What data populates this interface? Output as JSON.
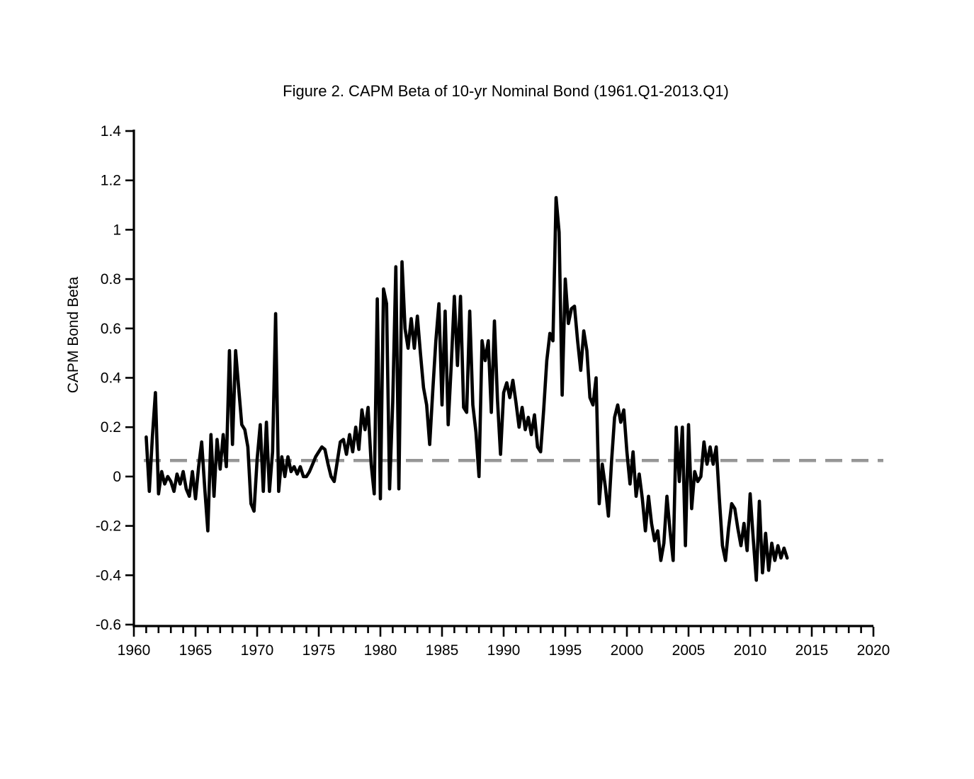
{
  "chart_data": {
    "type": "line",
    "title": "Figure 2. CAPM Beta of 10-yr Nominal Bond (1961.Q1-2013.Q1)",
    "ylabel": "CAPM Bond Beta",
    "xlabel": "",
    "xlim": [
      1960,
      2020
    ],
    "ylim": [
      -0.6,
      1.4
    ],
    "grid": false,
    "legend": "none",
    "line_color": "#000000",
    "x_minor_tick_step": 1,
    "x_major_ticks": [
      {
        "value": 1960,
        "label": "1960"
      },
      {
        "value": 1965,
        "label": "1965"
      },
      {
        "value": 1970,
        "label": "1970"
      },
      {
        "value": 1975,
        "label": "1975"
      },
      {
        "value": 1980,
        "label": "1980"
      },
      {
        "value": 1985,
        "label": "1985"
      },
      {
        "value": 1990,
        "label": "1990"
      },
      {
        "value": 1995,
        "label": "1995"
      },
      {
        "value": 2000,
        "label": "2000"
      },
      {
        "value": 2005,
        "label": "2005"
      },
      {
        "value": 2010,
        "label": "2010"
      },
      {
        "value": 2015,
        "label": "2015"
      },
      {
        "value": 2020,
        "label": "2020"
      }
    ],
    "y_ticks": [
      {
        "value": 1.4,
        "label": "1.4"
      },
      {
        "value": 1.2,
        "label": "1.2"
      },
      {
        "value": 1.0,
        "label": "1"
      },
      {
        "value": 0.8,
        "label": "0.8"
      },
      {
        "value": 0.6,
        "label": "0.6"
      },
      {
        "value": 0.4,
        "label": "0.4"
      },
      {
        "value": 0.2,
        "label": "0.2"
      },
      {
        "value": 0.0,
        "label": "0"
      },
      {
        "value": -0.2,
        "label": "-0.2"
      },
      {
        "value": -0.4,
        "label": "-0.4"
      },
      {
        "value": -0.6,
        "label": "-0.6"
      }
    ],
    "reference_line": {
      "value": 0.065,
      "style": "dashed",
      "color": "#969696"
    },
    "series": [
      {
        "name": "CAPM bond beta (quarterly)",
        "color": "#000000",
        "x_start": 1961.0,
        "x_step": 0.25,
        "x_end": 2013.0,
        "values": [
          0.16,
          -0.06,
          0.16,
          0.34,
          -0.07,
          0.02,
          -0.03,
          0.0,
          -0.02,
          -0.06,
          0.01,
          -0.03,
          0.02,
          -0.05,
          -0.08,
          0.02,
          -0.09,
          0.04,
          0.14,
          -0.05,
          -0.22,
          0.17,
          -0.08,
          0.15,
          0.03,
          0.17,
          0.04,
          0.51,
          0.13,
          0.51,
          0.36,
          0.21,
          0.19,
          0.12,
          -0.11,
          -0.14,
          0.07,
          0.21,
          -0.06,
          0.22,
          -0.06,
          0.1,
          0.66,
          -0.06,
          0.08,
          0.0,
          0.08,
          0.02,
          0.04,
          0.01,
          0.04,
          0.0,
          0.0,
          0.02,
          0.05,
          0.08,
          0.1,
          0.12,
          0.11,
          0.05,
          0.0,
          -0.02,
          0.06,
          0.14,
          0.15,
          0.09,
          0.17,
          0.1,
          0.2,
          0.11,
          0.27,
          0.19,
          0.28,
          0.05,
          -0.07,
          0.72,
          -0.09,
          0.76,
          0.7,
          -0.05,
          0.3,
          0.85,
          -0.05,
          0.87,
          0.6,
          0.52,
          0.64,
          0.52,
          0.65,
          0.5,
          0.36,
          0.29,
          0.13,
          0.35,
          0.55,
          0.7,
          0.29,
          0.67,
          0.21,
          0.45,
          0.73,
          0.45,
          0.73,
          0.28,
          0.26,
          0.67,
          0.29,
          0.18,
          0.0,
          0.55,
          0.47,
          0.55,
          0.26,
          0.63,
          0.31,
          0.09,
          0.34,
          0.38,
          0.32,
          0.39,
          0.3,
          0.2,
          0.28,
          0.19,
          0.24,
          0.17,
          0.25,
          0.12,
          0.1,
          0.27,
          0.47,
          0.58,
          0.55,
          1.13,
          0.99,
          0.33,
          0.8,
          0.62,
          0.68,
          0.69,
          0.55,
          0.43,
          0.59,
          0.51,
          0.32,
          0.29,
          0.4,
          -0.11,
          0.05,
          -0.04,
          -0.16,
          0.06,
          0.24,
          0.29,
          0.22,
          0.27,
          0.1,
          -0.03,
          0.1,
          -0.08,
          0.01,
          -0.09,
          -0.22,
          -0.08,
          -0.19,
          -0.26,
          -0.22,
          -0.34,
          -0.27,
          -0.08,
          -0.22,
          -0.34,
          0.2,
          -0.02,
          0.2,
          -0.28,
          0.21,
          -0.13,
          0.02,
          -0.02,
          0.0,
          0.14,
          0.05,
          0.12,
          0.05,
          0.12,
          -0.09,
          -0.28,
          -0.34,
          -0.21,
          -0.11,
          -0.13,
          -0.21,
          -0.28,
          -0.19,
          -0.3,
          -0.07,
          -0.25,
          -0.42,
          -0.1,
          -0.39,
          -0.23,
          -0.38,
          -0.27,
          -0.34,
          -0.28,
          -0.33,
          -0.29,
          -0.33
        ]
      }
    ]
  }
}
